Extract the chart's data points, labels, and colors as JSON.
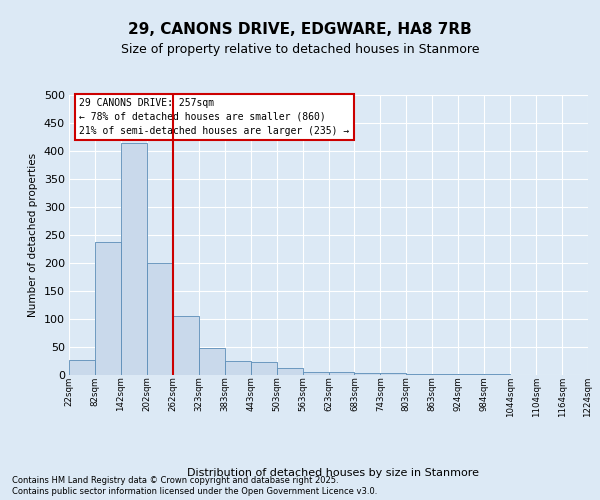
{
  "title_line1": "29, CANONS DRIVE, EDGWARE, HA8 7RB",
  "title_line2": "Size of property relative to detached houses in Stanmore",
  "xlabel": "Distribution of detached houses by size in Stanmore",
  "ylabel": "Number of detached properties",
  "bar_color": "#c9d9eb",
  "bar_edge_color": "#5b8db8",
  "background_color": "#dce9f5",
  "vline_color": "#cc0000",
  "vline_index": 4,
  "annotation_text": "29 CANONS DRIVE: 257sqm\n← 78% of detached houses are smaller (860)\n21% of semi-detached houses are larger (235) →",
  "annotation_box_color": "#cc0000",
  "bins": [
    "22sqm",
    "82sqm",
    "142sqm",
    "202sqm",
    "262sqm",
    "323sqm",
    "383sqm",
    "443sqm",
    "503sqm",
    "563sqm",
    "623sqm",
    "683sqm",
    "743sqm",
    "803sqm",
    "863sqm",
    "924sqm",
    "984sqm",
    "1044sqm",
    "1104sqm",
    "1164sqm",
    "1224sqm"
  ],
  "bar_heights": [
    27,
    237,
    415,
    200,
    106,
    48,
    25,
    23,
    12,
    6,
    5,
    4,
    4,
    2,
    1,
    1,
    1,
    0,
    0,
    0
  ],
  "ylim": [
    0,
    500
  ],
  "yticks": [
    0,
    50,
    100,
    150,
    200,
    250,
    300,
    350,
    400,
    450,
    500
  ],
  "footer_line1": "Contains HM Land Registry data © Crown copyright and database right 2025.",
  "footer_line2": "Contains public sector information licensed under the Open Government Licence v3.0."
}
